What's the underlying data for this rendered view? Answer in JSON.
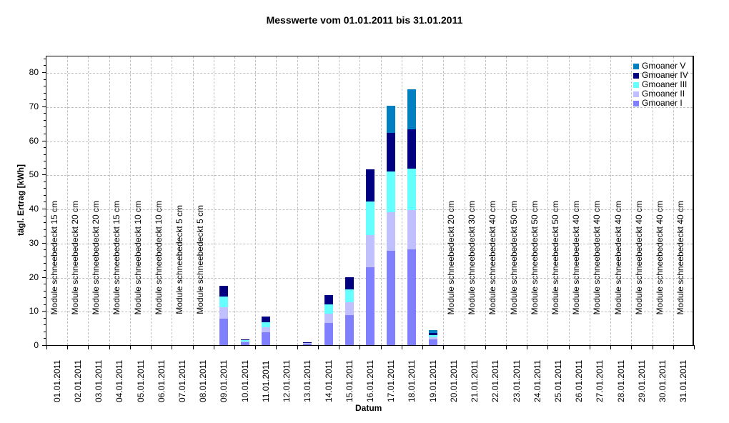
{
  "chart_data": {
    "type": "bar",
    "stacked": true,
    "title": "Messwerte vom 01.01.2011 bis 31.01.2011",
    "xlabel": "Datum",
    "ylabel": "tägl. Ertrag [kWh]",
    "ylim": [
      0,
      85
    ],
    "yticks": [
      0,
      10,
      20,
      30,
      40,
      50,
      60,
      70,
      80
    ],
    "grid": true,
    "legend_position": "top-right-inside",
    "categories": [
      "01.01.2011",
      "02.01.2011",
      "03.01.2011",
      "04.01.2011",
      "05.01.2011",
      "06.01.2011",
      "07.01.2011",
      "08.01.2011",
      "09.01.2011",
      "10.01.2011",
      "11.01.2011",
      "12.01.2011",
      "13.01.2011",
      "14.01.2011",
      "15.01.2011",
      "16.01.2011",
      "17.01.2011",
      "18.01.2011",
      "19.01.2011",
      "20.01.2011",
      "21.01.2011",
      "22.01.2011",
      "23.01.2011",
      "24.01.2011",
      "25.01.2011",
      "26.01.2011",
      "27.01.2011",
      "28.01.2011",
      "29.01.2011",
      "30.01.2011",
      "31.01.2011"
    ],
    "series": [
      {
        "name": "Gmoaner I",
        "color": "#8080ff",
        "values": [
          0,
          0,
          0,
          0,
          0,
          0,
          0,
          0,
          7.7,
          0.8,
          3.8,
          0,
          0.4,
          6.5,
          8.8,
          22.8,
          27.6,
          28.1,
          1.7,
          0,
          0,
          0,
          0,
          0,
          0,
          0,
          0,
          0,
          0,
          0,
          0
        ]
      },
      {
        "name": "Gmoaner II",
        "color": "#c0c0ff",
        "values": [
          0,
          0,
          0,
          0,
          0,
          0,
          0,
          0,
          3.3,
          0.2,
          1.4,
          0,
          0.2,
          2.7,
          3.8,
          9.4,
          11.4,
          11.5,
          0.6,
          0,
          0,
          0,
          0,
          0,
          0,
          0,
          0,
          0,
          0,
          0,
          0
        ]
      },
      {
        "name": "Gmoaner III",
        "color": "#66ffff",
        "values": [
          0,
          0,
          0,
          0,
          0,
          0,
          0,
          0,
          3.2,
          0.5,
          1.6,
          0,
          0,
          2.7,
          3.7,
          9.9,
          11.9,
          12.1,
          0.6,
          0,
          0,
          0,
          0,
          0,
          0,
          0,
          0,
          0,
          0,
          0,
          0
        ]
      },
      {
        "name": "Gmoaner IV",
        "color": "#000080",
        "values": [
          0,
          0,
          0,
          0,
          0,
          0,
          0,
          0,
          3.2,
          0.2,
          1.6,
          0,
          0.3,
          2.8,
          3.6,
          9.5,
          11.3,
          11.5,
          0.7,
          0,
          0,
          0,
          0,
          0,
          0,
          0,
          0,
          0,
          0,
          0,
          0
        ]
      },
      {
        "name": "Gmoaner V",
        "color": "#0080c0",
        "values": [
          0,
          0,
          0,
          0,
          0,
          0,
          0,
          0,
          0,
          0,
          0,
          0,
          0,
          0,
          0,
          0,
          8.0,
          11.8,
          0.8,
          0,
          0,
          0,
          0,
          0,
          0,
          0,
          0,
          0,
          0,
          0,
          0
        ]
      }
    ],
    "annotations": [
      {
        "day": "01.01.2011",
        "text": "Module schneebedeckt 15 cm"
      },
      {
        "day": "02.01.2011",
        "text": "Module schneebedeckt 20 cm"
      },
      {
        "day": "03.01.2011",
        "text": "Module schneebedeckt 20 cm"
      },
      {
        "day": "04.01.2011",
        "text": "Module schneebedeckt 15 cm"
      },
      {
        "day": "05.01.2011",
        "text": "Module schneebedeckt 10 cm"
      },
      {
        "day": "06.01.2011",
        "text": "Module schneebedeckt 10 cm"
      },
      {
        "day": "07.01.2011",
        "text": "Module schneebedeckt 5 cm"
      },
      {
        "day": "08.01.2011",
        "text": "Module schneebedeckt 5 cm"
      },
      {
        "day": "20.01.2011",
        "text": "Module schneebedeckt 20 cm"
      },
      {
        "day": "21.01.2011",
        "text": "Module schneebedeckt 30 cm"
      },
      {
        "day": "22.01.2011",
        "text": "Module schneebedeckt 40 cm"
      },
      {
        "day": "23.01.2011",
        "text": "Module schneebedeckt 50 cm"
      },
      {
        "day": "24.01.2011",
        "text": "Module schneebedeckt 50 cm"
      },
      {
        "day": "25.01.2011",
        "text": "Module schneebedeckt 50 cm"
      },
      {
        "day": "26.01.2011",
        "text": "Module schneebedeckt 40 cm"
      },
      {
        "day": "27.01.2011",
        "text": "Module schneebedeckt 40 cm"
      },
      {
        "day": "28.01.2011",
        "text": "Module schneebedeckt 40 cm"
      },
      {
        "day": "29.01.2011",
        "text": "Module schneebedeckt 40 cm"
      },
      {
        "day": "30.01.2011",
        "text": "Module schneebedeckt 40 cm"
      },
      {
        "day": "31.01.2011",
        "text": "Module schneebedeckt 40 cm"
      }
    ]
  },
  "legend_order": [
    "Gmoaner V",
    "Gmoaner IV",
    "Gmoaner III",
    "Gmoaner II",
    "Gmoaner I"
  ]
}
